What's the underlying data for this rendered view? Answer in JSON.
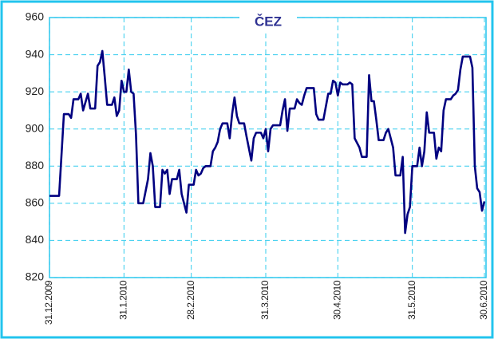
{
  "chart_data": {
    "type": "line",
    "title": "ČEZ",
    "x": [
      "2009-12-31",
      "2010-01-04",
      "2010-01-06",
      "2010-01-08",
      "2010-01-09",
      "2010-01-10",
      "2010-01-12",
      "2010-01-13",
      "2010-01-14",
      "2010-01-16",
      "2010-01-17",
      "2010-01-19",
      "2010-01-20",
      "2010-01-21",
      "2010-01-22",
      "2010-01-23",
      "2010-01-24",
      "2010-01-26",
      "2010-01-27",
      "2010-01-28",
      "2010-01-29",
      "2010-01-30",
      "2010-01-31",
      "2010-02-01",
      "2010-02-02",
      "2010-02-03",
      "2010-02-04",
      "2010-02-05",
      "2010-02-06",
      "2010-02-08",
      "2010-02-10",
      "2010-02-11",
      "2010-02-12",
      "2010-02-13",
      "2010-02-15",
      "2010-02-16",
      "2010-02-17",
      "2010-02-18",
      "2010-02-19",
      "2010-02-20",
      "2010-02-22",
      "2010-02-23",
      "2010-02-24",
      "2010-02-26",
      "2010-02-27",
      "2010-03-01",
      "2010-03-02",
      "2010-03-03",
      "2010-03-04",
      "2010-03-05",
      "2010-03-06",
      "2010-03-08",
      "2010-03-09",
      "2010-03-10",
      "2010-03-11",
      "2010-03-12",
      "2010-03-13",
      "2010-03-15",
      "2010-03-16",
      "2010-03-17",
      "2010-03-18",
      "2010-03-19",
      "2010-03-20",
      "2010-03-22",
      "2010-03-23",
      "2010-03-25",
      "2010-03-26",
      "2010-03-27",
      "2010-03-29",
      "2010-03-30",
      "2010-03-31",
      "2010-04-01",
      "2010-04-02",
      "2010-04-03",
      "2010-04-06",
      "2010-04-07",
      "2010-04-08",
      "2010-04-09",
      "2010-04-10",
      "2010-04-12",
      "2010-04-13",
      "2010-04-14",
      "2010-04-15",
      "2010-04-16",
      "2010-04-17",
      "2010-04-20",
      "2010-04-21",
      "2010-04-22",
      "2010-04-24",
      "2010-04-25",
      "2010-04-26",
      "2010-04-27",
      "2010-04-28",
      "2010-04-29",
      "2010-04-30",
      "2010-05-01",
      "2010-05-02",
      "2010-05-04",
      "2010-05-05",
      "2010-05-06",
      "2010-05-07",
      "2010-05-09",
      "2010-05-10",
      "2010-05-12",
      "2010-05-13",
      "2010-05-14",
      "2010-05-15",
      "2010-05-16",
      "2010-05-17",
      "2010-05-19",
      "2010-05-20",
      "2010-05-21",
      "2010-05-22",
      "2010-05-23",
      "2010-05-24",
      "2010-05-26",
      "2010-05-27",
      "2010-05-28",
      "2010-05-29",
      "2010-05-30",
      "2010-05-31",
      "2010-06-02",
      "2010-06-03",
      "2010-06-04",
      "2010-06-05",
      "2010-06-06",
      "2010-06-07",
      "2010-06-09",
      "2010-06-10",
      "2010-06-11",
      "2010-06-12",
      "2010-06-13",
      "2010-06-14",
      "2010-06-16",
      "2010-06-17",
      "2010-06-18",
      "2010-06-19",
      "2010-06-20",
      "2010-06-21",
      "2010-06-24",
      "2010-06-25",
      "2010-06-26",
      "2010-06-27",
      "2010-06-28",
      "2010-06-29",
      "2010-06-30"
    ],
    "series": [
      {
        "color": "#000080",
        "values": [
          864,
          864,
          908,
          908,
          906,
          916,
          916,
          919,
          910,
          919,
          911,
          911,
          934,
          936,
          942,
          928,
          913,
          913,
          917,
          907,
          910,
          926,
          920,
          920,
          932,
          920,
          919,
          897,
          860,
          860,
          873,
          887,
          880,
          858,
          858,
          878,
          876,
          878,
          865,
          873,
          873,
          878,
          865,
          855,
          870,
          870,
          878,
          875,
          876,
          879,
          880,
          880,
          888,
          890,
          893,
          900,
          903,
          903,
          895,
          908,
          917,
          907,
          903,
          903,
          896,
          883,
          895,
          898,
          898,
          895,
          900,
          888,
          900,
          902,
          902,
          910,
          916,
          899,
          911,
          911,
          916,
          914,
          913,
          918,
          922,
          922,
          908,
          905,
          905,
          912,
          919,
          919,
          926,
          925,
          918,
          925,
          924,
          924,
          925,
          924,
          895,
          890,
          885,
          885,
          929,
          915,
          915,
          905,
          894,
          894,
          898,
          900,
          895,
          890,
          875,
          875,
          885,
          844,
          854,
          858,
          880,
          880,
          890,
          880,
          888,
          909,
          898,
          898,
          884,
          890,
          888,
          910,
          916,
          916,
          918,
          919,
          921,
          932,
          939,
          939,
          933,
          880,
          868,
          866,
          856,
          861
        ]
      }
    ],
    "xlim": [
      "2009-12-31",
      "2010-06-30"
    ],
    "xticks": [
      {
        "value": "2009-12-31",
        "label": "31.12.2009"
      },
      {
        "value": "2010-01-31",
        "label": "31.1.2010"
      },
      {
        "value": "2010-02-28",
        "label": "28.2.2010"
      },
      {
        "value": "2010-03-31",
        "label": "31.3.2010"
      },
      {
        "value": "2010-04-30",
        "label": "30.4.2010"
      },
      {
        "value": "2010-05-31",
        "label": "31.5.2010"
      },
      {
        "value": "2010-06-30",
        "label": "30.6.2010"
      }
    ],
    "ylim": [
      820,
      960
    ],
    "yticks": [
      820,
      840,
      860,
      880,
      900,
      920,
      940,
      960
    ],
    "grid": true
  }
}
